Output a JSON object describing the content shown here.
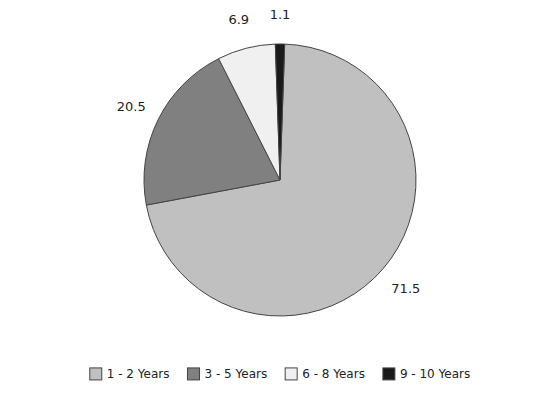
{
  "chart_data": {
    "type": "pie",
    "categories": [
      "1 - 2 Years",
      "3 - 5 Years",
      "6 - 8 Years",
      "9 - 10 Years"
    ],
    "values": [
      71.5,
      20.5,
      6.9,
      1.1
    ],
    "colors": [
      "#C0C0C0",
      "#808080",
      "#F0F0F0",
      "#1A1A1A"
    ],
    "data_labels": true,
    "legend": "bottom"
  }
}
